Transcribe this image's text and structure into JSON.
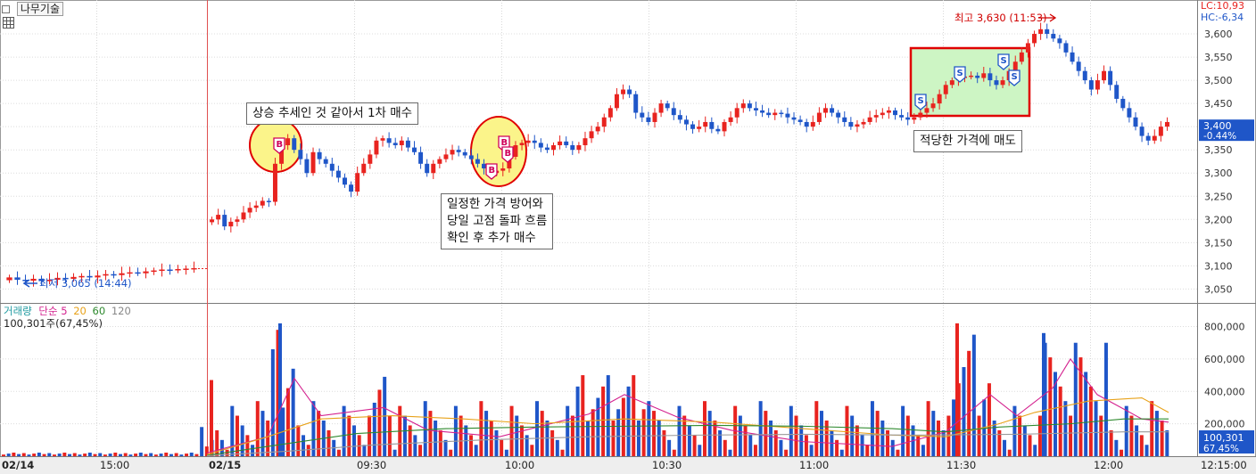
{
  "header": {
    "ticker_icon": "square-bullet-icon",
    "stock_name": "나무기술",
    "grid_icon": "grid-table-icon"
  },
  "price_axis": {
    "lc": "LC:10,93",
    "hc": "HC:-6,34",
    "ticks": [
      "3,600",
      "3,550",
      "3,500",
      "3,450",
      "3,400",
      "3,350",
      "3,300",
      "3,250",
      "3,200",
      "3,150",
      "3,100",
      "3,050"
    ],
    "ylim": [
      3020,
      3650
    ],
    "current_price": "3,400",
    "current_change": "-0.44%"
  },
  "volume_axis": {
    "ticks": [
      "800,000",
      "600,000",
      "400,000",
      "200,000"
    ],
    "ylim": [
      0,
      880000
    ],
    "current_volume": "100,301",
    "current_pct": "67,45%"
  },
  "volume_legend": {
    "label": "거래량",
    "ma_label": "단순",
    "ma5": "5",
    "ma20": "20",
    "ma60": "60",
    "ma120": "120",
    "current": "100,301주(67,45%)"
  },
  "time_axis": {
    "labels": [
      "02/14",
      "15:00",
      "02/15",
      "09:30",
      "10:00",
      "10:30",
      "11:00",
      "11:30",
      "12:00",
      "12:15:00"
    ]
  },
  "annotations": {
    "high_label": "최고 3,630 (11:53)",
    "low_label": "최저 3,065 (14:44)",
    "buy1": "상승 추세인 것 같아서 1차 매수",
    "buy2_line1": "일정한 가격 방어와",
    "buy2_line2": "당일 고점 돌파 흐름",
    "buy2_line3": "확인 후 추가 매수",
    "sell": "적당한 가격에 매도",
    "buy_marker": "B",
    "sell_marker": "S"
  },
  "colors": {
    "up": "#e8231f",
    "down": "#1f56c8",
    "ma5": "#d4228f",
    "ma20": "#e8a21a",
    "ma60": "#2f8a2f",
    "ma120": "#9a9a9a",
    "highlight_yellow": "#fbf48a",
    "highlight_green": "#cdf5c4",
    "box_red": "#e00000"
  },
  "chart_data": {
    "type": "candlestick",
    "price_series": [
      [
        "prev",
        3075
      ],
      [
        "prev",
        3070
      ],
      [
        "prev",
        3068
      ],
      [
        "prev",
        3072
      ],
      [
        "prev",
        3067
      ],
      [
        "prev",
        3070
      ],
      [
        "prev",
        3074
      ],
      [
        "prev",
        3072
      ],
      [
        "prev",
        3076
      ],
      [
        "prev",
        3078
      ],
      [
        "prev",
        3075
      ],
      [
        "prev",
        3079
      ],
      [
        "prev",
        3082
      ],
      [
        "prev",
        3080
      ],
      [
        "prev",
        3084
      ],
      [
        "prev",
        3086
      ],
      [
        "prev",
        3084
      ],
      [
        "prev",
        3088
      ],
      [
        "prev",
        3090
      ],
      [
        "prev",
        3092
      ],
      [
        "prev",
        3091
      ],
      [
        "prev",
        3093
      ],
      [
        "prev",
        3094
      ],
      [
        "prev",
        3095
      ],
      [
        "open",
        3200
      ],
      [
        "t",
        3210
      ],
      [
        "t",
        3185
      ],
      [
        "t",
        3195
      ],
      [
        "t",
        3200
      ],
      [
        "t",
        3215
      ],
      [
        "t",
        3225
      ],
      [
        "t",
        3230
      ],
      [
        "t",
        3240
      ],
      [
        "t",
        3238
      ],
      [
        "t",
        3320
      ],
      [
        "t",
        3360
      ],
      [
        "t",
        3375
      ],
      [
        "t",
        3350
      ],
      [
        "t",
        3330
      ],
      [
        "t",
        3300
      ],
      [
        "t",
        3345
      ],
      [
        "t",
        3330
      ],
      [
        "t",
        3320
      ],
      [
        "t",
        3305
      ],
      [
        "t",
        3290
      ],
      [
        "t",
        3275
      ],
      [
        "t",
        3260
      ],
      [
        "t",
        3300
      ],
      [
        "t",
        3320
      ],
      [
        "t",
        3340
      ],
      [
        "t",
        3370
      ],
      [
        "t",
        3375
      ],
      [
        "t",
        3365
      ],
      [
        "t",
        3360
      ],
      [
        "t",
        3370
      ],
      [
        "t",
        3355
      ],
      [
        "t",
        3345
      ],
      [
        "t",
        3320
      ],
      [
        "t",
        3300
      ],
      [
        "t",
        3320
      ],
      [
        "t",
        3330
      ],
      [
        "t",
        3340
      ],
      [
        "t",
        3350
      ],
      [
        "t",
        3345
      ],
      [
        "t",
        3338
      ],
      [
        "t",
        3330
      ],
      [
        "t",
        3320
      ],
      [
        "t",
        3310
      ],
      [
        "t",
        3300
      ],
      [
        "t",
        3305
      ],
      [
        "t",
        3310
      ],
      [
        "t",
        3335
      ],
      [
        "t",
        3360
      ],
      [
        "t",
        3365
      ],
      [
        "t",
        3370
      ],
      [
        "t",
        3365
      ],
      [
        "t",
        3355
      ],
      [
        "t",
        3350
      ],
      [
        "t",
        3360
      ],
      [
        "t",
        3368
      ],
      [
        "t",
        3360
      ],
      [
        "t",
        3350
      ],
      [
        "t",
        3360
      ],
      [
        "t",
        3375
      ],
      [
        "t",
        3390
      ],
      [
        "t",
        3400
      ],
      [
        "t",
        3420
      ],
      [
        "t",
        3440
      ],
      [
        "t",
        3470
      ],
      [
        "t",
        3480
      ],
      [
        "t",
        3470
      ],
      [
        "t",
        3430
      ],
      [
        "t",
        3420
      ],
      [
        "t",
        3410
      ],
      [
        "t",
        3430
      ],
      [
        "t",
        3450
      ],
      [
        "t",
        3440
      ],
      [
        "t",
        3425
      ],
      [
        "t",
        3415
      ],
      [
        "t",
        3405
      ],
      [
        "t",
        3395
      ],
      [
        "t",
        3400
      ],
      [
        "t",
        3410
      ],
      [
        "t",
        3395
      ],
      [
        "t",
        3390
      ],
      [
        "t",
        3410
      ],
      [
        "t",
        3420
      ],
      [
        "t",
        3440
      ],
      [
        "t",
        3450
      ],
      [
        "t",
        3440
      ],
      [
        "t",
        3435
      ],
      [
        "t",
        3430
      ],
      [
        "t",
        3425
      ],
      [
        "t",
        3430
      ],
      [
        "t",
        3428
      ],
      [
        "t",
        3420
      ],
      [
        "t",
        3415
      ],
      [
        "t",
        3410
      ],
      [
        "t",
        3400
      ],
      [
        "t",
        3410
      ],
      [
        "t",
        3430
      ],
      [
        "t",
        3440
      ],
      [
        "t",
        3430
      ],
      [
        "t",
        3420
      ],
      [
        "t",
        3410
      ],
      [
        "t",
        3400
      ],
      [
        "t",
        3405
      ],
      [
        "t",
        3410
      ],
      [
        "t",
        3420
      ],
      [
        "t",
        3425
      ],
      [
        "t",
        3430
      ],
      [
        "t",
        3435
      ],
      [
        "t",
        3425
      ],
      [
        "t",
        3420
      ],
      [
        "t",
        3415
      ],
      [
        "t",
        3420
      ],
      [
        "t",
        3430
      ],
      [
        "t",
        3440
      ],
      [
        "t",
        3450
      ],
      [
        "t",
        3470
      ],
      [
        "t",
        3490
      ],
      [
        "t",
        3500
      ],
      [
        "t",
        3505
      ],
      [
        "t",
        3508
      ],
      [
        "t",
        3510
      ],
      [
        "t",
        3505
      ],
      [
        "t",
        3515
      ],
      [
        "t",
        3500
      ],
      [
        "t",
        3490
      ],
      [
        "t",
        3500
      ],
      [
        "t",
        3520
      ],
      [
        "t",
        3540
      ],
      [
        "t",
        3560
      ],
      [
        "t",
        3580
      ],
      [
        "t",
        3600
      ],
      [
        "t",
        3610
      ],
      [
        "t",
        3600
      ],
      [
        "t",
        3590
      ],
      [
        "t",
        3580
      ],
      [
        "t",
        3560
      ],
      [
        "t",
        3540
      ],
      [
        "t",
        3520
      ],
      [
        "t",
        3500
      ],
      [
        "t",
        3480
      ],
      [
        "t",
        3500
      ],
      [
        "t",
        3520
      ],
      [
        "t",
        3490
      ],
      [
        "t",
        3460
      ],
      [
        "t",
        3440
      ],
      [
        "t",
        3420
      ],
      [
        "t",
        3400
      ],
      [
        "t",
        3380
      ],
      [
        "t",
        3370
      ],
      [
        "t",
        3380
      ],
      [
        "t",
        3400
      ],
      [
        "t",
        3410
      ]
    ],
    "volume_note": "volume bars alternate red/blue with peaks near 800,000"
  }
}
